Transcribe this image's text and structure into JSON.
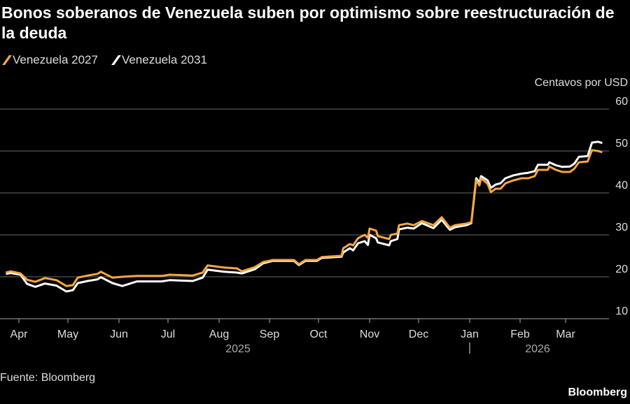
{
  "title": "Bonos soberanos de Venezuela suben por optimismo sobre reestructuración de la deuda",
  "source": "Fuente: Bloomberg",
  "brand": "Bloomberg",
  "chart_data": {
    "type": "line",
    "unit_label": "Centavos por USD",
    "ylim": [
      5,
      60
    ],
    "yticks": [
      10,
      20,
      30,
      40,
      50,
      60
    ],
    "grid": true,
    "legend_position": "top-left",
    "xticks": [
      "Apr",
      "May",
      "Jun",
      "Jul",
      "Aug",
      "Sep",
      "Oct",
      "Nov",
      "Dec",
      "Jan",
      "Feb",
      "Mar"
    ],
    "year_labels": [
      "2025",
      "2026"
    ],
    "x": [
      "2025-03-24",
      "2025-03-27",
      "2025-04-02",
      "2025-04-06",
      "2025-04-11",
      "2025-04-17",
      "2025-04-24",
      "2025-04-30",
      "2025-05-04",
      "2025-05-07",
      "2025-05-13",
      "2025-05-19",
      "2025-05-21",
      "2025-05-28",
      "2025-06-03",
      "2025-06-12",
      "2025-06-27",
      "2025-07-02",
      "2025-07-16",
      "2025-07-22",
      "2025-07-25",
      "2025-08-04",
      "2025-08-12",
      "2025-08-15",
      "2025-08-23",
      "2025-08-28",
      "2025-09-03",
      "2025-09-16",
      "2025-09-19",
      "2025-09-23",
      "2025-09-30",
      "2025-10-03",
      "2025-10-15",
      "2025-10-16",
      "2025-10-20",
      "2025-10-22",
      "2025-10-25",
      "2025-10-29",
      "2025-10-31",
      "2025-11-01",
      "2025-11-05",
      "2025-11-06",
      "2025-11-13",
      "2025-11-14",
      "2025-11-18",
      "2025-11-19",
      "2025-11-24",
      "2025-11-28",
      "2025-12-03",
      "2025-12-10",
      "2025-12-15",
      "2025-12-20",
      "2025-12-23",
      "2025-12-30",
      "2026-01-02",
      "2026-01-05",
      "2026-01-07",
      "2026-01-08",
      "2026-01-12",
      "2026-01-14",
      "2026-01-17",
      "2026-01-20",
      "2026-01-23",
      "2026-01-28",
      "2026-02-02",
      "2026-02-06",
      "2026-02-10",
      "2026-02-12",
      "2026-02-18",
      "2026-02-19",
      "2026-02-23",
      "2026-02-27",
      "2026-03-04",
      "2026-03-07",
      "2026-03-10",
      "2026-03-16",
      "2026-03-19",
      "2026-03-23",
      "2026-03-26"
    ],
    "series": [
      {
        "name": "Venezuela 2027",
        "color": "#f5a742",
        "values": [
          21.0,
          21.3,
          20.8,
          19.3,
          18.8,
          19.7,
          19.2,
          17.8,
          18.0,
          19.8,
          20.3,
          20.7,
          21.2,
          19.8,
          20.0,
          20.2,
          20.2,
          20.5,
          20.3,
          21.0,
          22.7,
          22.2,
          22.0,
          21.3,
          22.3,
          23.5,
          24.0,
          24.0,
          23.0,
          24.0,
          24.0,
          24.7,
          25.0,
          26.8,
          27.8,
          27.5,
          29.2,
          30.0,
          29.3,
          31.5,
          31.0,
          29.7,
          29.0,
          30.0,
          30.3,
          32.3,
          32.7,
          32.3,
          33.3,
          32.3,
          34.2,
          31.7,
          32.3,
          32.7,
          33.0,
          43.0,
          41.8,
          43.5,
          42.2,
          40.2,
          41.0,
          41.0,
          42.3,
          43.0,
          43.5,
          43.5,
          44.0,
          45.5,
          45.5,
          46.3,
          45.5,
          45.0,
          45.0,
          45.8,
          47.3,
          47.5,
          50.2,
          50.0,
          49.7
        ]
      },
      {
        "name": "Venezuela 2031",
        "color": "#ffffff",
        "values": [
          20.7,
          20.9,
          20.5,
          18.3,
          17.6,
          18.4,
          17.9,
          16.5,
          16.8,
          18.5,
          19.0,
          19.4,
          19.9,
          18.5,
          17.8,
          18.9,
          18.9,
          19.2,
          19.0,
          19.8,
          21.7,
          21.2,
          21.0,
          20.8,
          21.8,
          23.2,
          23.8,
          23.8,
          22.8,
          23.8,
          23.8,
          24.5,
          24.8,
          25.8,
          26.8,
          26.3,
          28.0,
          28.5,
          27.6,
          30.0,
          29.2,
          28.2,
          27.5,
          28.5,
          29.0,
          31.3,
          31.7,
          31.5,
          32.8,
          31.6,
          33.6,
          31.2,
          31.8,
          32.3,
          32.8,
          43.5,
          42.5,
          44.0,
          43.0,
          41.2,
          42.0,
          42.3,
          43.5,
          44.2,
          44.6,
          44.8,
          45.2,
          46.7,
          46.7,
          47.3,
          46.6,
          46.2,
          46.3,
          47.0,
          48.6,
          48.8,
          52.0,
          52.2,
          51.9
        ]
      }
    ]
  }
}
